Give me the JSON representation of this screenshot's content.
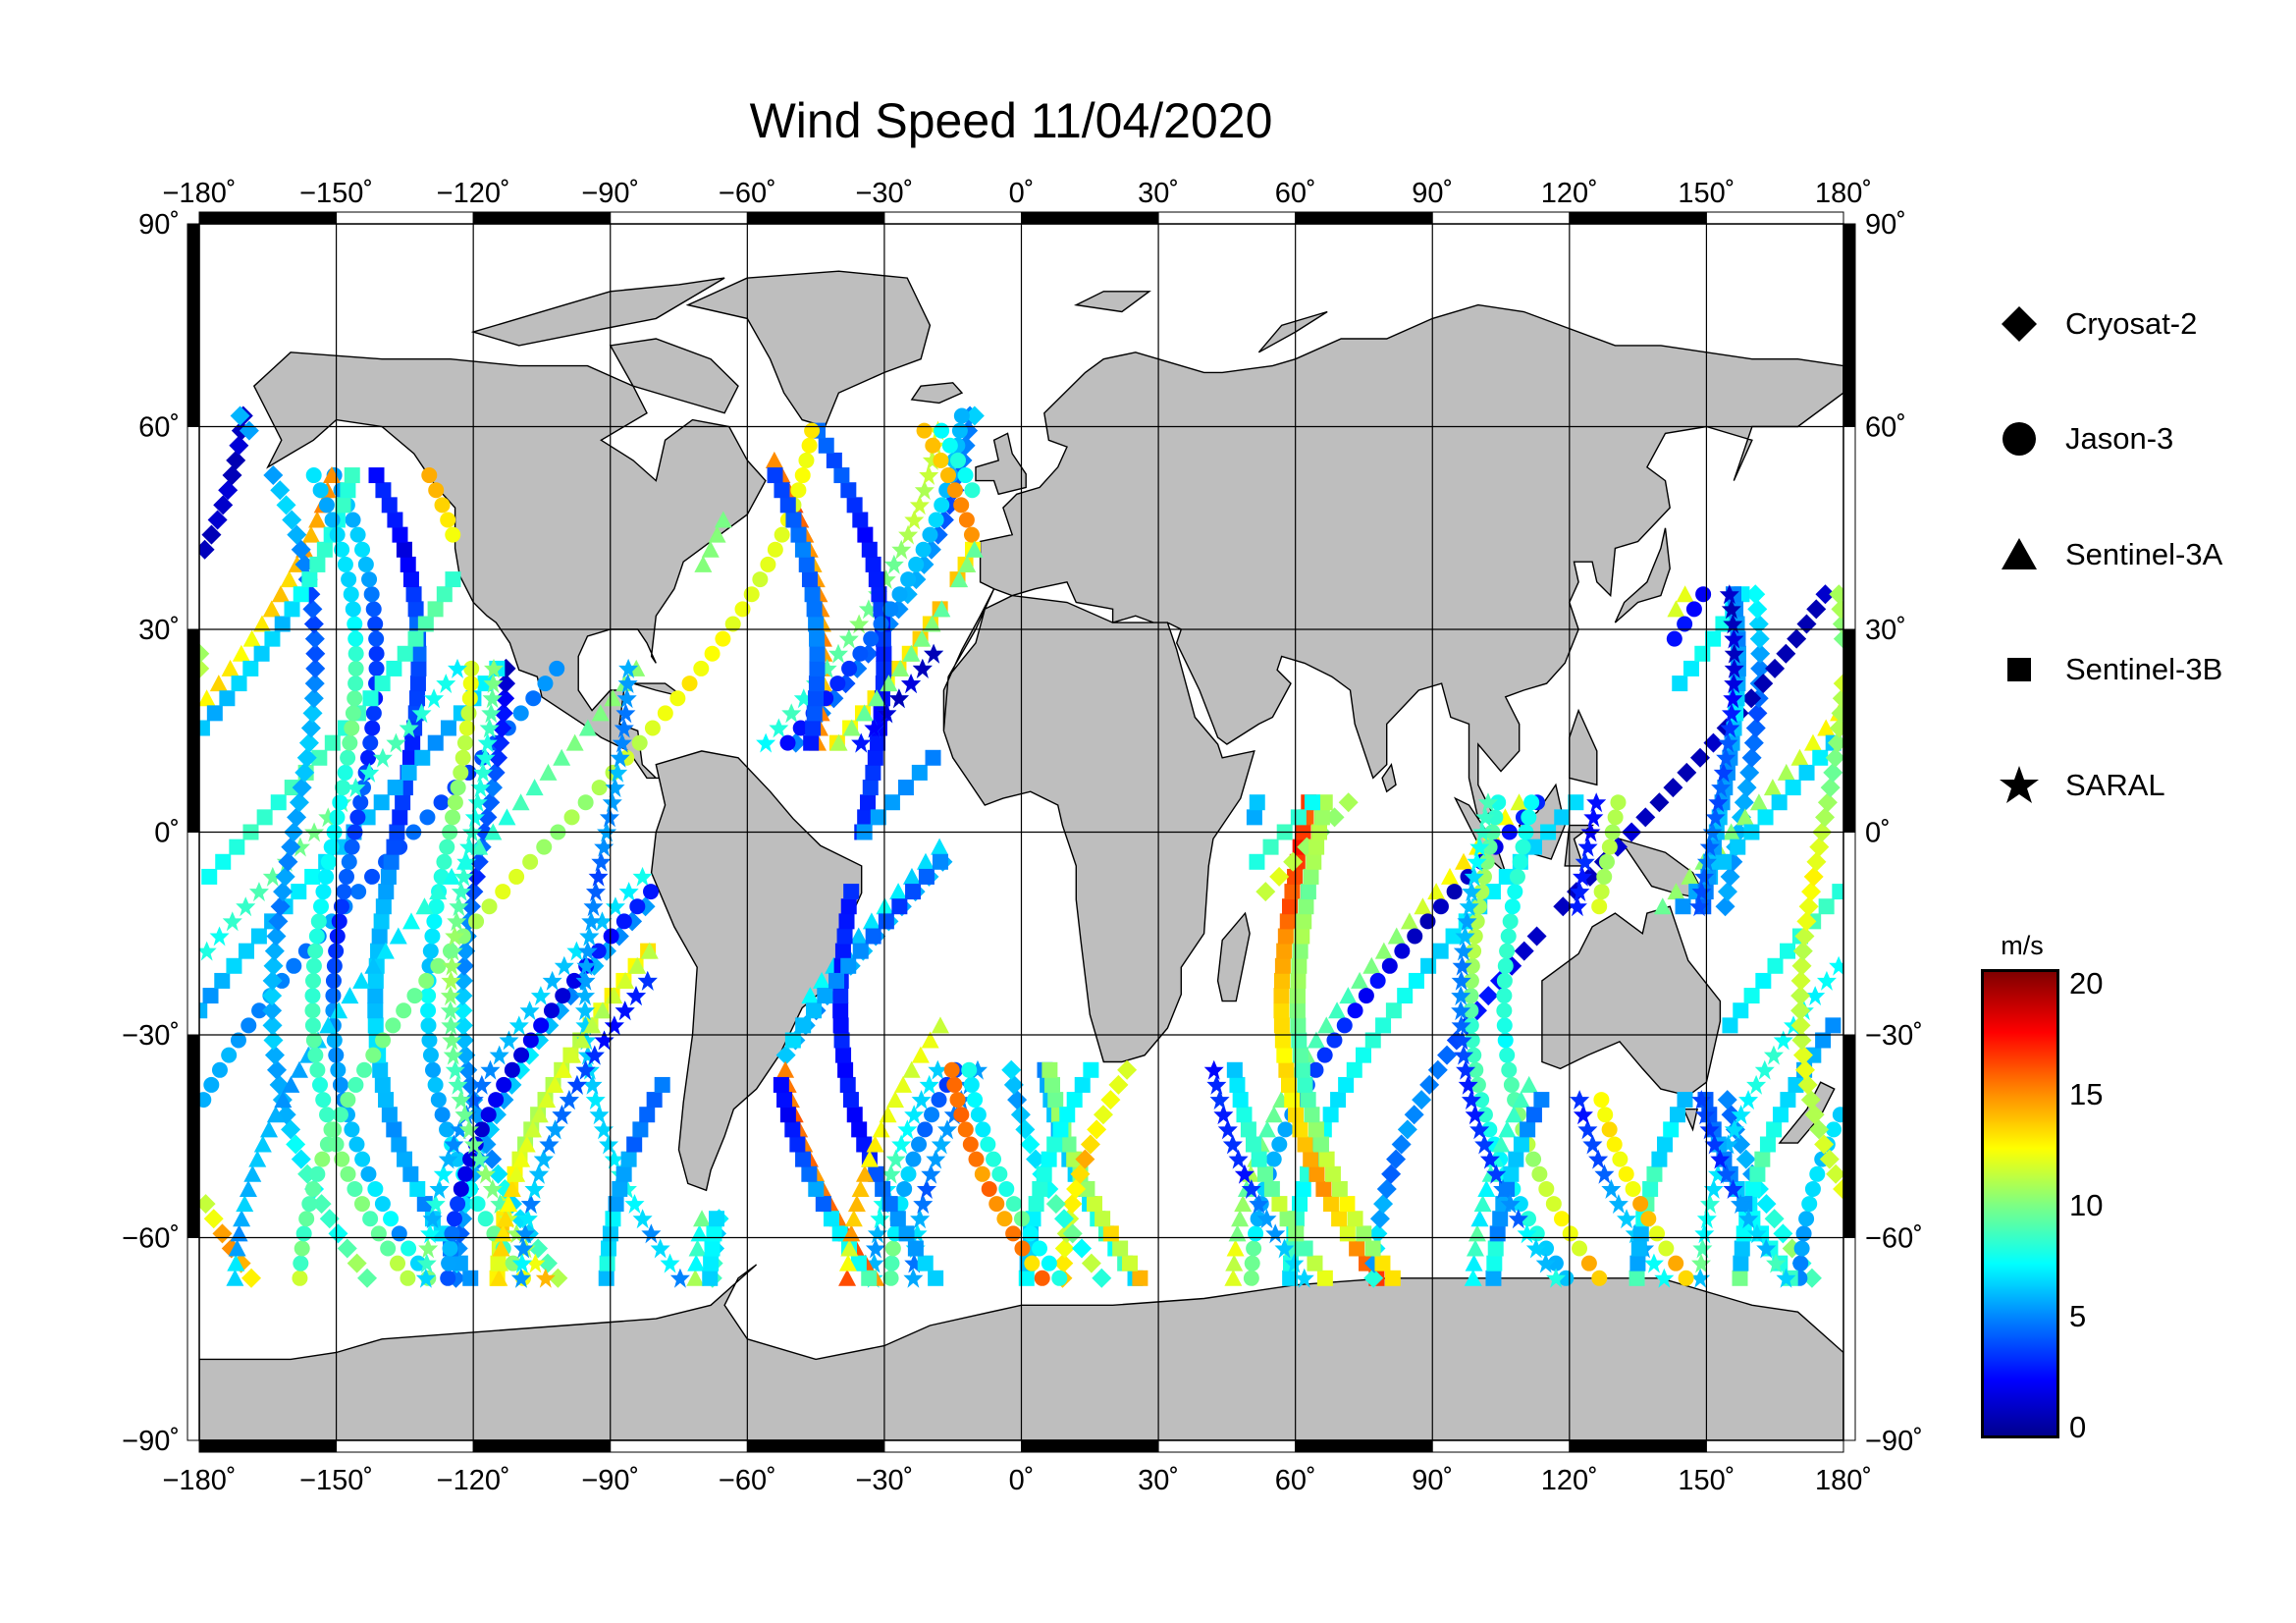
{
  "title": "Wind Speed 11/04/2020",
  "map": {
    "lon_ticks": [
      "−180˚",
      "−150˚",
      "−120˚",
      "−90˚",
      "−60˚",
      "−30˚",
      "0˚",
      "30˚",
      "60˚",
      "90˚",
      "120˚",
      "150˚",
      "180˚"
    ],
    "lat_ticks": [
      "90˚",
      "60˚",
      "30˚",
      "0˚",
      "−30˚",
      "−60˚",
      "−90˚"
    ],
    "lon_range": [
      -180,
      180
    ],
    "lat_range": [
      -90,
      90
    ],
    "land_color": "#bebebe",
    "ocean_color": "#ffffff"
  },
  "legend": {
    "items": [
      {
        "label": "Cryosat-2",
        "symbol": "diamond"
      },
      {
        "label": "Jason-3",
        "symbol": "circle"
      },
      {
        "label": "Sentinel-3A",
        "symbol": "triangle"
      },
      {
        "label": "Sentinel-3B",
        "symbol": "square"
      },
      {
        "label": "SARAL",
        "symbol": "star"
      }
    ]
  },
  "colorbar": {
    "unit": "m/s",
    "ticks": [
      "20",
      "15",
      "10",
      "5",
      "0"
    ],
    "range": [
      0,
      20
    ],
    "colormap": "jet"
  }
}
